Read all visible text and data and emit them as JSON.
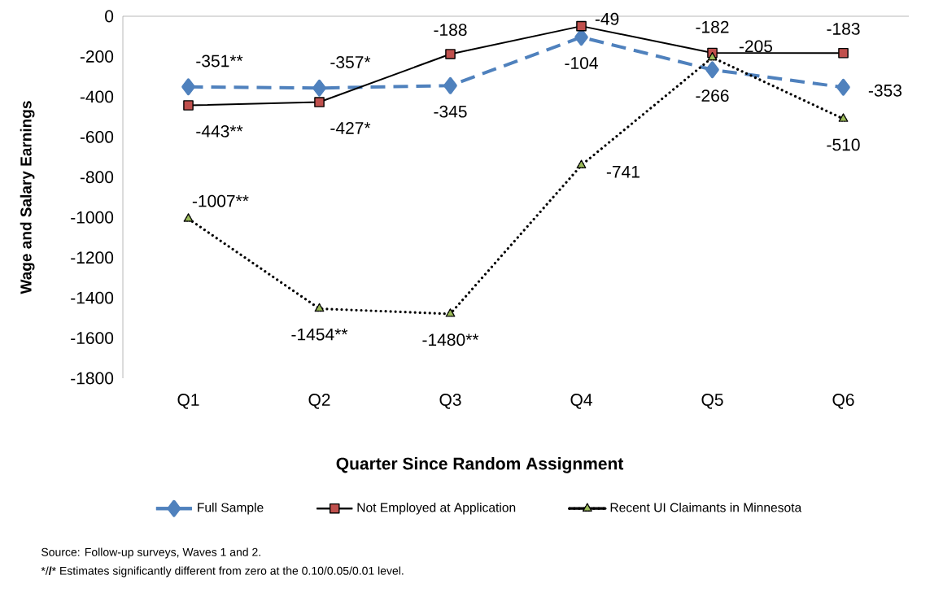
{
  "chart_data": {
    "type": "line",
    "xlabel": "Quarter Since Random Assignment",
    "ylabel": "Wage and Salary Earnings",
    "categories": [
      "Q1",
      "Q2",
      "Q3",
      "Q4",
      "Q5",
      "Q6"
    ],
    "ylim": [
      -1800,
      0
    ],
    "yticks": [
      -1800,
      -1600,
      -1400,
      -1200,
      -1000,
      -800,
      -600,
      -400,
      -200,
      0
    ],
    "series": [
      {
        "name": "Full Sample",
        "color": "#4f81bd",
        "marker": "diamond",
        "line_style": "dashed",
        "values": [
          -351,
          -357,
          -345,
          -104,
          -266,
          -353
        ],
        "value_labels": [
          "-351**",
          "-357*",
          "-345",
          "-104",
          "-266",
          "-353"
        ]
      },
      {
        "name": "Not Employed at Application",
        "color": "#c0504d",
        "marker": "square",
        "line_style": "solid",
        "values": [
          -443,
          -427,
          -188,
          -49,
          -182,
          -183
        ],
        "value_labels": [
          "-443**",
          "-427*",
          "-188",
          "-49",
          "-182",
          "-183"
        ]
      },
      {
        "name": "Recent UI Claimants in Minnesota",
        "color": "#9bbb59",
        "marker": "triangle",
        "line_style": "dotted",
        "values": [
          -1007,
          -1454,
          -1480,
          -741,
          -205,
          -510
        ],
        "value_labels": [
          "-1007**",
          "-1454**",
          "-1480**",
          "-741",
          "-205",
          "-510"
        ]
      }
    ],
    "grid": false,
    "legend": "bottom",
    "annotations": [
      "Source: Follow-up surveys, Waves 1 and 2.",
      "*/**/*** Estimates significantly different from zero at the 0.10/0.05/0.01 level."
    ]
  }
}
